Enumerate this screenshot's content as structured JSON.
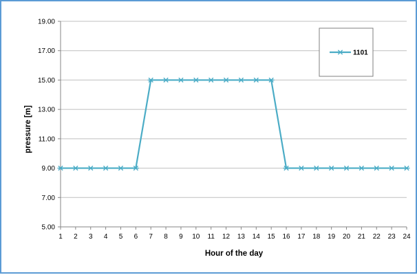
{
  "chart_data": {
    "type": "line",
    "title": "",
    "xlabel": "Hour of the day",
    "ylabel": "pressure [m]",
    "x": [
      1,
      2,
      3,
      4,
      5,
      6,
      7,
      8,
      9,
      10,
      11,
      12,
      13,
      14,
      15,
      16,
      17,
      18,
      19,
      20,
      21,
      22,
      23,
      24
    ],
    "x_tick_labels": [
      "1",
      "2",
      "3",
      "4",
      "5",
      "6",
      "7",
      "8",
      "9",
      "10",
      "11",
      "12",
      "13",
      "14",
      "15",
      "16",
      "17",
      "18",
      "19",
      "20",
      "21",
      "22",
      "23",
      "24"
    ],
    "ylim": [
      5,
      19
    ],
    "y_ticks": [
      5,
      7,
      9,
      11,
      13,
      15,
      17,
      19
    ],
    "y_tick_labels": [
      "5.00",
      "7.00",
      "9.00",
      "11.00",
      "13.00",
      "15.00",
      "17.00",
      "19.00"
    ],
    "grid": "horizontal",
    "legend_position": "top-right",
    "series": [
      {
        "name": "1101",
        "color": "#4bacc6",
        "marker": "asterisk",
        "values": [
          9,
          9,
          9,
          9,
          9,
          9,
          15,
          15,
          15,
          15,
          15,
          15,
          15,
          15,
          15,
          9,
          9,
          9,
          9,
          9,
          9,
          9,
          9,
          9
        ]
      }
    ]
  }
}
